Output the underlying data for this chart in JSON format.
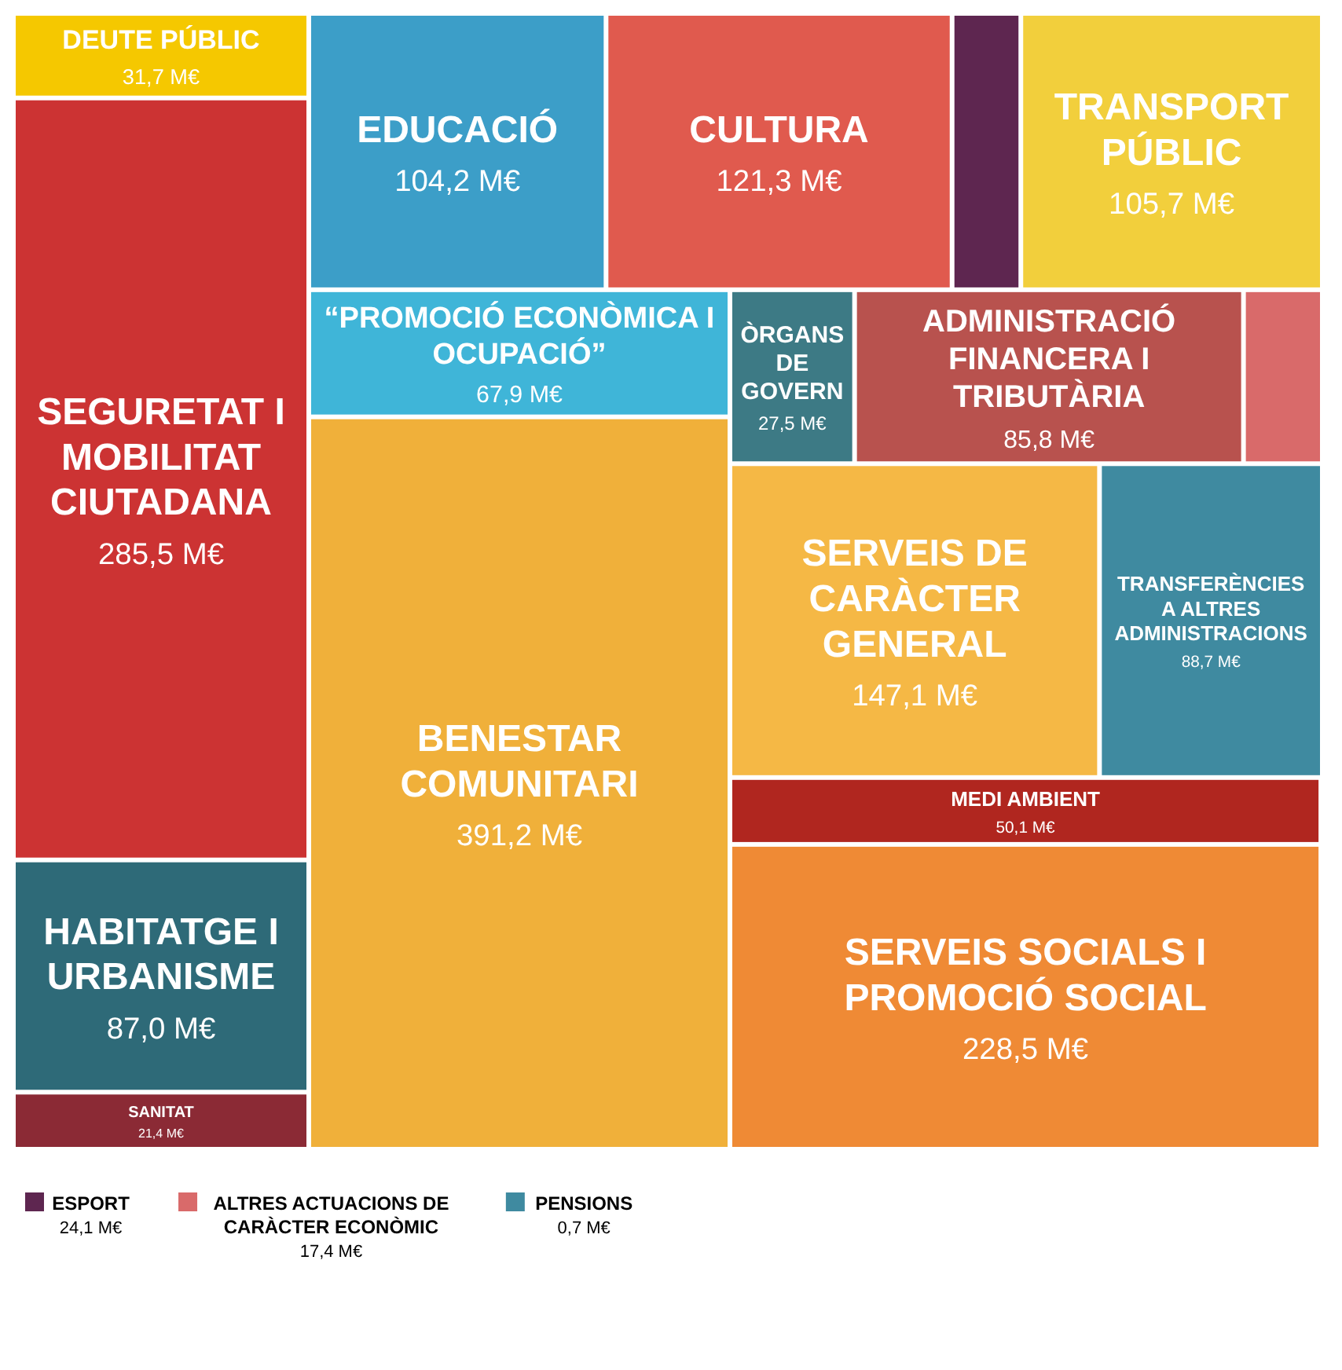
{
  "chart_data": {
    "type": "other",
    "categories": [
      "DEUTE PÚBLIC",
      "SEGURETAT I MOBILITAT CIUTADANA",
      "HABITATGE I URBANISME",
      "SANITAT",
      "EDUCACIÓ",
      "CULTURA",
      "ESPORT",
      "TRANSPORT PÚBLIC",
      "“PROMOCIÓ ECONÒMICA I OCUPACIÓ”",
      "BENESTAR COMUNITARI",
      "ÒRGANS DE GOVERN",
      "ADMINISTRACIÓ FINANCERA I TRIBUTÀRIA",
      "ALTRES ACTUACIONS DE CARÀCTER ECONÒMIC",
      "SERVEIS DE CARÀCTER GENERAL",
      "TRANSFERÈNCIES A ALTRES ADMINISTRACIONS",
      "MEDI AMBIENT",
      "SERVEIS SOCIALS I PROMOCIÓ SOCIAL",
      "PENSIONS"
    ],
    "values": [
      31.7,
      285.5,
      87.0,
      21.4,
      104.2,
      121.3,
      24.1,
      105.7,
      67.9,
      391.2,
      27.5,
      85.8,
      17.4,
      147.1,
      88.7,
      50.1,
      228.5,
      0.7
    ],
    "value_labels": [
      "31,7 M€",
      "285,5 M€",
      "87,0 M€",
      "21,4 M€",
      "104,2 M€",
      "121,3 M€",
      "24,1 M€",
      "105,7 M€",
      "67,9 M€",
      "391,2 M€",
      "27,5 M€",
      "85,8 M€",
      "17,4 M€",
      "147,1 M€",
      "88,7 M€",
      "50,1 M€",
      "228,5 M€",
      "0,7 M€"
    ],
    "colors": [
      "#f5c800",
      "#cc3333",
      "#2e6a78",
      "#8b2a35",
      "#3c9ec8",
      "#e05a4e",
      "#5e2650",
      "#f2cf3c",
      "#3fb5d8",
      "#f0b03a",
      "#3d7a85",
      "#b8524e",
      "#d96a6a",
      "#f5b845",
      "#3f8aa0",
      "#b0261f",
      "#ef8a35",
      "#3f8aa0"
    ]
  }
}
